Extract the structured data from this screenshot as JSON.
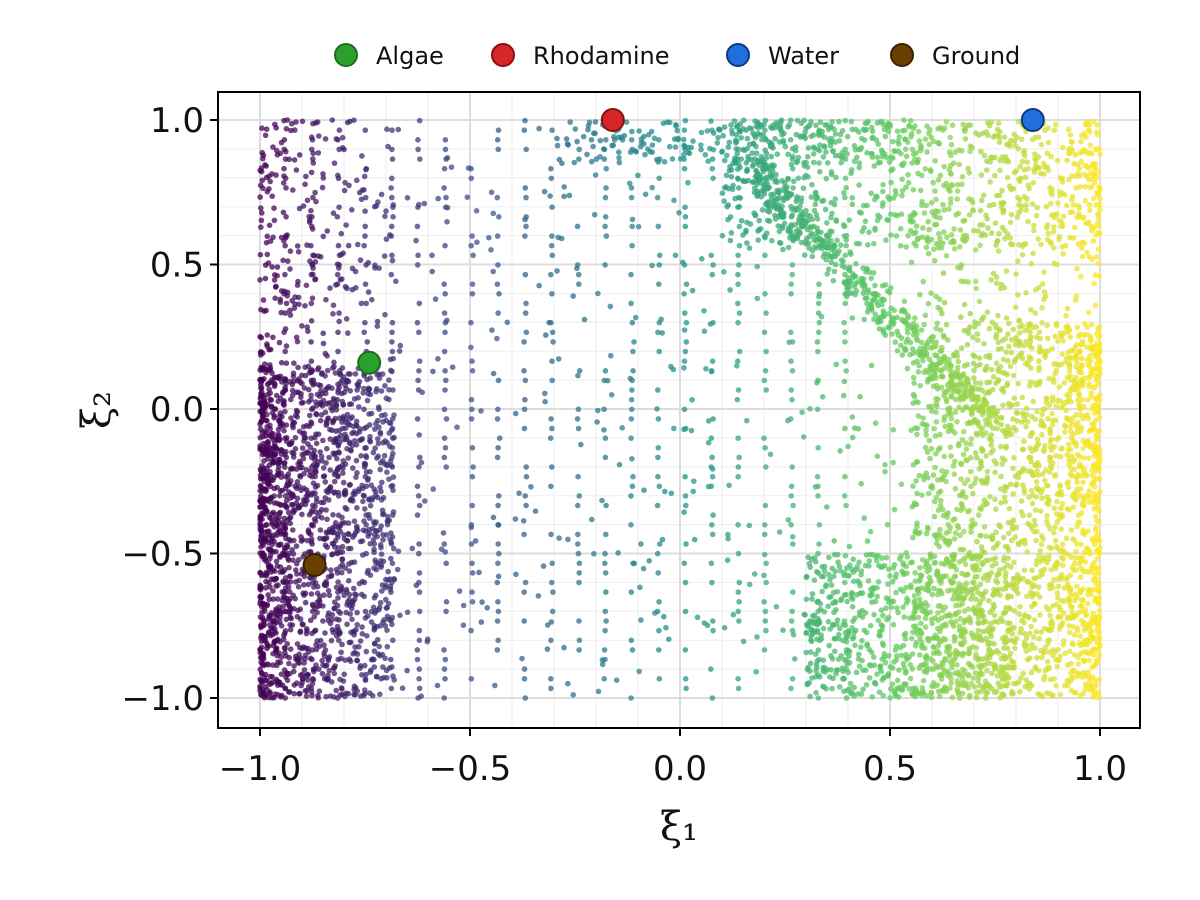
{
  "chart_data": {
    "type": "scatter",
    "title": "",
    "xlabel": "ξ₁",
    "ylabel": "ξ₂",
    "xlim": [
      -1.1,
      1.1
    ],
    "ylim": [
      -1.1,
      1.1
    ],
    "x_ticks": [
      -1.0,
      -0.5,
      0.0,
      0.5,
      1.0
    ],
    "y_ticks": [
      -1.0,
      -0.5,
      0.0,
      0.5,
      1.0
    ],
    "x_tick_labels": [
      "−1.0",
      "−0.5",
      "0.0",
      "0.5",
      "1.0"
    ],
    "y_tick_labels": [
      "−1.0",
      "−0.5",
      "0.0",
      "0.5",
      "1.0"
    ],
    "grid": true,
    "legend_position": "top",
    "colormap": "viridis",
    "colorscale_variable": "ξ₁",
    "background_density": "dense cloud of small points colored by ξ₁, heaviest near ξ₁=-1 and ξ₁=1, sparse regular grid columns in the middle",
    "highlighted_points": [
      {
        "name": "Algae",
        "x": -0.74,
        "y": 0.16,
        "color": "#2ca02c",
        "edge": "#1e6e1e"
      },
      {
        "name": "Rhodamine",
        "x": -0.16,
        "y": 1.0,
        "color": "#d62728",
        "edge": "#8b1010"
      },
      {
        "name": "Water",
        "x": 0.84,
        "y": 1.0,
        "color": "#1f6fe0",
        "edge": "#0d3a7a"
      },
      {
        "name": "Ground",
        "x": -0.87,
        "y": -0.54,
        "color": "#6b3f00",
        "edge": "#3a2200"
      }
    ],
    "legend": [
      "Algae",
      "Rhodamine",
      "Water",
      "Ground"
    ]
  }
}
